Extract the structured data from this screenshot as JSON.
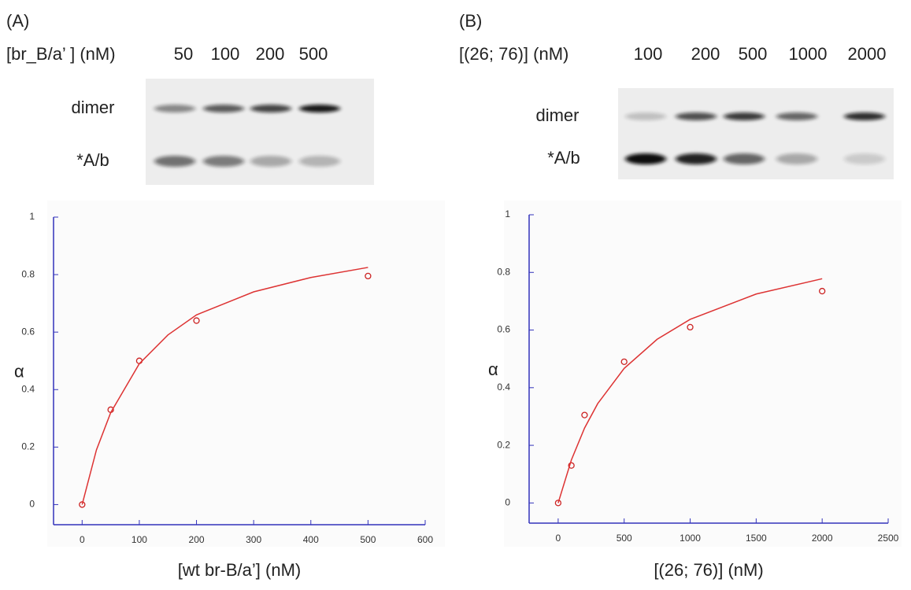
{
  "panels": [
    {
      "label": "(A)",
      "gel": {
        "concentration_label": "[br_B/a’ ] (nM)",
        "lanes": [
          "50",
          "100",
          "200",
          "500"
        ],
        "bands": [
          "dimer",
          "*A/b"
        ]
      }
    },
    {
      "label": "(B)",
      "gel": {
        "concentration_label": "[(26; 76)] (nM)",
        "lanes": [
          "100",
          "200",
          "500",
          "1000",
          "2000"
        ],
        "bands": [
          "dimer",
          "*A/b"
        ]
      }
    }
  ],
  "chart_data": [
    {
      "type": "scatter",
      "x_label": "[wt br-B/a’] (nM)",
      "y_label": "α",
      "xlim": [
        -50,
        600
      ],
      "ylim": [
        -0.07,
        1
      ],
      "xticks": [
        0,
        100,
        200,
        300,
        400,
        500,
        600
      ],
      "yticks": [
        0,
        0.2,
        0.4,
        0.6,
        0.8,
        1
      ],
      "series": [
        {
          "type": "scatter",
          "color": "#cc2222",
          "x": [
            0,
            50,
            100,
            200,
            500
          ],
          "values": [
            0,
            0.33,
            0.5,
            0.64,
            0.795
          ]
        },
        {
          "type": "line",
          "color": "#dd3333",
          "x": [
            0,
            25,
            50,
            100,
            150,
            200,
            300,
            400,
            500
          ],
          "values": [
            0,
            0.19,
            0.32,
            0.49,
            0.59,
            0.66,
            0.74,
            0.79,
            0.825
          ]
        }
      ]
    },
    {
      "type": "scatter",
      "x_label": "[(26; 76)] (nM)",
      "y_label": "α",
      "xlim": [
        -220,
        2500
      ],
      "ylim": [
        -0.07,
        1
      ],
      "xticks": [
        0,
        500,
        1000,
        1500,
        2000,
        2500
      ],
      "yticks": [
        0,
        0.2,
        0.4,
        0.6,
        0.8,
        1
      ],
      "series": [
        {
          "type": "scatter",
          "color": "#cc2222",
          "x": [
            0,
            100,
            200,
            500,
            1000,
            2000
          ],
          "values": [
            0,
            0.13,
            0.305,
            0.49,
            0.61,
            0.735
          ]
        },
        {
          "type": "line",
          "color": "#dd3333",
          "x": [
            0,
            100,
            200,
            300,
            500,
            750,
            1000,
            1500,
            2000
          ],
          "values": [
            0,
            0.149,
            0.26,
            0.345,
            0.467,
            0.568,
            0.637,
            0.725,
            0.778
          ]
        }
      ]
    }
  ]
}
